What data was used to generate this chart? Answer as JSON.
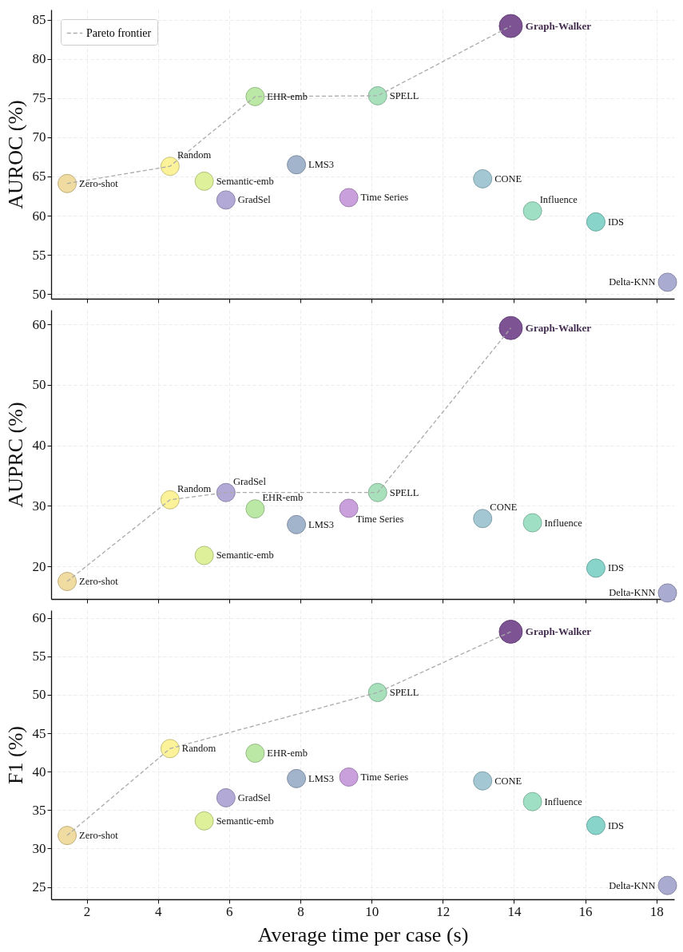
{
  "chart_data": [
    {
      "type": "bubble",
      "ylabel": "AUROC (%)",
      "xlim": [
        1.0,
        18.5
      ],
      "xticks": [
        2,
        4,
        6,
        8,
        10,
        12,
        14,
        16,
        18
      ],
      "ylim": [
        49.4,
        86.3
      ],
      "yticks": [
        50,
        55,
        60,
        65,
        70,
        75,
        80,
        85
      ],
      "grid": true,
      "legend": "top left",
      "tick_labels": "y",
      "marker": "circle",
      "series": [
        {
          "name": "Zero-shot",
          "color": "#f0dca0",
          "x": [
            1.45
          ],
          "values": [
            64.1
          ],
          "sizes": [
            0.63
          ]
        },
        {
          "name": "Random",
          "color": "#fbf29a",
          "x": [
            4.34
          ],
          "values": [
            66.3
          ],
          "sizes": [
            0.63
          ]
        },
        {
          "name": "Semantic-emb",
          "color": "#def09a",
          "x": [
            5.3
          ],
          "values": [
            64.4
          ],
          "sizes": [
            0.63
          ]
        },
        {
          "name": "GradSel",
          "color": "#b3a9d6",
          "x": [
            5.91
          ],
          "values": [
            62.0
          ],
          "sizes": [
            0.63
          ]
        },
        {
          "name": "EHR-emb",
          "color": "#bce8a6",
          "x": [
            6.73
          ],
          "values": [
            75.2
          ],
          "sizes": [
            0.63
          ]
        },
        {
          "name": "LMS3",
          "color": "#a2b4cc",
          "x": [
            7.89
          ],
          "values": [
            66.5
          ],
          "sizes": [
            0.63
          ]
        },
        {
          "name": "Time Series",
          "color": "#c9a0dc",
          "x": [
            9.36
          ],
          "values": [
            62.3
          ],
          "sizes": [
            0.63
          ]
        },
        {
          "name": "SPELL",
          "color": "#a8e0bc",
          "x": [
            10.17
          ],
          "values": [
            75.3
          ],
          "sizes": [
            0.63
          ]
        },
        {
          "name": "CONE",
          "color": "#a3c8d4",
          "x": [
            13.12
          ],
          "values": [
            64.7
          ],
          "sizes": [
            0.63
          ]
        },
        {
          "name": "Graph-Walker",
          "color": "#7d5394",
          "x": [
            13.91
          ],
          "values": [
            84.2
          ],
          "sizes": [
            1
          ]
        },
        {
          "name": "Influence",
          "color": "#9fe0c4",
          "x": [
            14.52
          ],
          "values": [
            60.6
          ],
          "sizes": [
            0.63
          ]
        },
        {
          "name": "IDS",
          "color": "#88d4ca",
          "x": [
            16.3
          ],
          "values": [
            59.2
          ],
          "sizes": [
            0.63
          ]
        },
        {
          "name": "Delta-KNN",
          "color": "#a9abd0",
          "x": [
            18.31
          ],
          "values": [
            51.5
          ],
          "sizes": [
            0.63
          ]
        },
        {
          "name": "Pareto frontier",
          "type": "line",
          "color": "#aaaaaa",
          "line_style": "dashed",
          "marker": "none",
          "x": [
            1.45,
            4.34,
            6.73,
            10.17,
            13.91
          ],
          "values": [
            64.1,
            66.3,
            75.2,
            75.3,
            84.2
          ]
        }
      ]
    },
    {
      "type": "bubble",
      "ylabel": "AUPRC (%)",
      "xlim": [
        1.0,
        18.5
      ],
      "xticks": [
        2,
        4,
        6,
        8,
        10,
        12,
        14,
        16,
        18
      ],
      "ylim": [
        14.6,
        62.4
      ],
      "yticks": [
        20,
        30,
        40,
        50,
        60
      ],
      "grid": true,
      "tick_labels": "y",
      "marker": "circle",
      "series": [
        {
          "name": "Zero-shot",
          "color": "#f0dca0",
          "x": [
            1.45
          ],
          "values": [
            17.5
          ],
          "sizes": [
            0.63
          ]
        },
        {
          "name": "Random",
          "color": "#fbf29a",
          "x": [
            4.34
          ],
          "values": [
            31.0
          ],
          "sizes": [
            0.63
          ]
        },
        {
          "name": "Semantic-emb",
          "color": "#def09a",
          "x": [
            5.3
          ],
          "values": [
            21.8
          ],
          "sizes": [
            0.63
          ]
        },
        {
          "name": "GradSel",
          "color": "#b3a9d6",
          "x": [
            5.91
          ],
          "values": [
            32.2
          ],
          "sizes": [
            0.63
          ]
        },
        {
          "name": "EHR-emb",
          "color": "#bce8a6",
          "x": [
            6.73
          ],
          "values": [
            29.5
          ],
          "sizes": [
            0.63
          ]
        },
        {
          "name": "LMS3",
          "color": "#a2b4cc",
          "x": [
            7.89
          ],
          "values": [
            26.9
          ],
          "sizes": [
            0.63
          ]
        },
        {
          "name": "Time Series",
          "color": "#c9a0dc",
          "x": [
            9.36
          ],
          "values": [
            29.6
          ],
          "sizes": [
            0.63
          ]
        },
        {
          "name": "SPELL",
          "color": "#a8e0bc",
          "x": [
            10.17
          ],
          "values": [
            32.2
          ],
          "sizes": [
            0.63
          ]
        },
        {
          "name": "CONE",
          "color": "#a3c8d4",
          "x": [
            13.12
          ],
          "values": [
            27.9
          ],
          "sizes": [
            0.63
          ]
        },
        {
          "name": "Graph-Walker",
          "color": "#7d5394",
          "x": [
            13.91
          ],
          "values": [
            59.4
          ],
          "sizes": [
            1
          ]
        },
        {
          "name": "Influence",
          "color": "#9fe0c4",
          "x": [
            14.52
          ],
          "values": [
            27.2
          ],
          "sizes": [
            0.63
          ]
        },
        {
          "name": "IDS",
          "color": "#88d4ca",
          "x": [
            16.3
          ],
          "values": [
            19.7
          ],
          "sizes": [
            0.63
          ]
        },
        {
          "name": "Delta-KNN",
          "color": "#a9abd0",
          "x": [
            18.31
          ],
          "values": [
            15.6
          ],
          "sizes": [
            0.63
          ]
        },
        {
          "type": "line",
          "color": "#aaaaaa",
          "line_style": "dashed",
          "marker": "none",
          "x": [
            1.45,
            4.34,
            5.91,
            10.17,
            13.91
          ],
          "values": [
            17.5,
            31.0,
            32.2,
            32.2,
            59.4
          ]
        }
      ]
    },
    {
      "type": "bubble",
      "xlabel": "Average time per case (s)",
      "ylabel": "F1 (%)",
      "xlim": [
        1.0,
        18.5
      ],
      "xticks": [
        2,
        4,
        6,
        8,
        10,
        12,
        14,
        16,
        18
      ],
      "ylim": [
        23.4,
        61.0
      ],
      "yticks": [
        25,
        30,
        35,
        40,
        45,
        50,
        55,
        60
      ],
      "grid": true,
      "marker": "circle",
      "series": [
        {
          "name": "Zero-shot",
          "color": "#f0dca0",
          "x": [
            1.45
          ],
          "values": [
            31.7
          ],
          "sizes": [
            0.63
          ]
        },
        {
          "name": "Random",
          "color": "#fbf29a",
          "x": [
            4.34
          ],
          "values": [
            43.0
          ],
          "sizes": [
            0.63
          ]
        },
        {
          "name": "Semantic-emb",
          "color": "#def09a",
          "x": [
            5.3
          ],
          "values": [
            33.6
          ],
          "sizes": [
            0.63
          ]
        },
        {
          "name": "GradSel",
          "color": "#b3a9d6",
          "x": [
            5.91
          ],
          "values": [
            36.6
          ],
          "sizes": [
            0.63
          ]
        },
        {
          "name": "EHR-emb",
          "color": "#bce8a6",
          "x": [
            6.73
          ],
          "values": [
            42.4
          ],
          "sizes": [
            0.63
          ]
        },
        {
          "name": "LMS3",
          "color": "#a2b4cc",
          "x": [
            7.89
          ],
          "values": [
            39.1
          ],
          "sizes": [
            0.63
          ]
        },
        {
          "name": "Time Series",
          "color": "#c9a0dc",
          "x": [
            9.36
          ],
          "values": [
            39.3
          ],
          "sizes": [
            0.63
          ]
        },
        {
          "name": "SPELL",
          "color": "#a8e0bc",
          "x": [
            10.17
          ],
          "values": [
            50.3
          ],
          "sizes": [
            0.63
          ]
        },
        {
          "name": "CONE",
          "color": "#a3c8d4",
          "x": [
            13.12
          ],
          "values": [
            38.8
          ],
          "sizes": [
            0.63
          ]
        },
        {
          "name": "Graph-Walker",
          "color": "#7d5394",
          "x": [
            13.91
          ],
          "values": [
            58.2
          ],
          "sizes": [
            1
          ]
        },
        {
          "name": "Influence",
          "color": "#9fe0c4",
          "x": [
            14.52
          ],
          "values": [
            36.1
          ],
          "sizes": [
            0.63
          ]
        },
        {
          "name": "IDS",
          "color": "#88d4ca",
          "x": [
            16.3
          ],
          "values": [
            33.0
          ],
          "sizes": [
            0.63
          ]
        },
        {
          "name": "Delta-KNN",
          "color": "#a9abd0",
          "x": [
            18.31
          ],
          "values": [
            25.2
          ],
          "sizes": [
            0.63
          ]
        },
        {
          "type": "line",
          "color": "#aaaaaa",
          "line_style": "dashed",
          "marker": "none",
          "x": [
            1.45,
            4.34,
            10.17,
            13.91
          ],
          "values": [
            31.7,
            43.0,
            50.3,
            58.2
          ]
        }
      ]
    }
  ]
}
